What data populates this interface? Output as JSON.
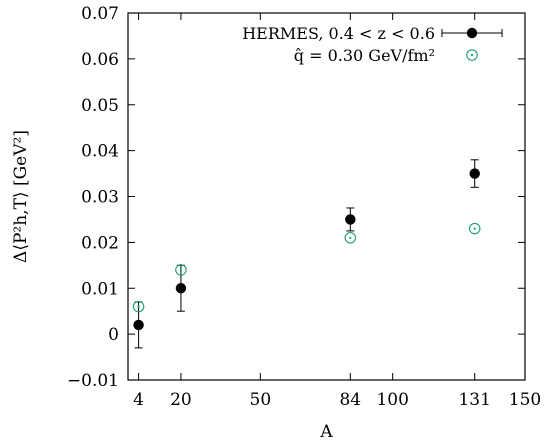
{
  "chart_data": {
    "type": "scatter",
    "xlabel": "A",
    "ylabel": "Δ⟨P²h,T⟩ [GeV²]",
    "xlim": [
      0,
      150
    ],
    "ylim": [
      -0.01,
      0.07
    ],
    "x_ticks": [
      {
        "value": 4,
        "label": "4"
      },
      {
        "value": 20,
        "label": "20"
      },
      {
        "value": 50,
        "label": "50"
      },
      {
        "value": 84,
        "label": "84"
      },
      {
        "value": 100,
        "label": "100"
      },
      {
        "value": 131,
        "label": "131"
      },
      {
        "value": 150,
        "label": "150"
      }
    ],
    "y_ticks": [
      {
        "value": -0.01,
        "label": "−0.01"
      },
      {
        "value": 0,
        "label": "0"
      },
      {
        "value": 0.01,
        "label": "0.01"
      },
      {
        "value": 0.02,
        "label": "0.02"
      },
      {
        "value": 0.03,
        "label": "0.03"
      },
      {
        "value": 0.04,
        "label": "0.04"
      },
      {
        "value": 0.05,
        "label": "0.05"
      },
      {
        "value": 0.06,
        "label": "0.06"
      },
      {
        "value": 0.07,
        "label": "0.07"
      }
    ],
    "grid": false,
    "legend_position": "top-right",
    "series": [
      {
        "name": "HERMES, 0.4 < z < 0.6",
        "marker": "filled-circle",
        "color": "#000000",
        "points": [
          {
            "x": 4,
            "y": 0.002,
            "err": 0.005
          },
          {
            "x": 20,
            "y": 0.01,
            "err": 0.005
          },
          {
            "x": 84,
            "y": 0.025,
            "err": 0.0025
          },
          {
            "x": 131,
            "y": 0.035,
            "err": 0.003
          }
        ]
      },
      {
        "name": "q̂ = 0.30 GeV/fm²",
        "marker": "open-circle",
        "color": "#1a9e77",
        "points": [
          {
            "x": 4,
            "y": 0.006
          },
          {
            "x": 20,
            "y": 0.014
          },
          {
            "x": 84,
            "y": 0.021
          },
          {
            "x": 131,
            "y": 0.023
          }
        ]
      }
    ]
  }
}
